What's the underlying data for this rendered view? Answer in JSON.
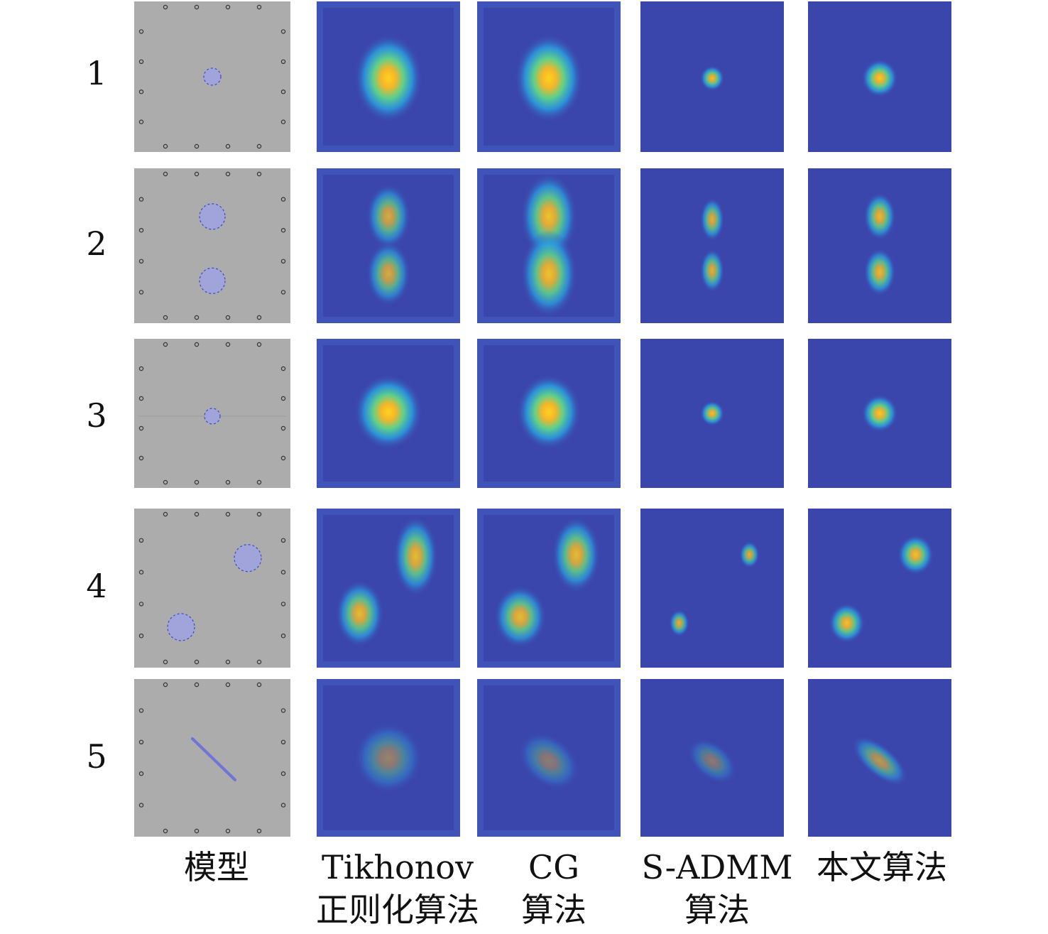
{
  "rows": [
    {
      "label": "1"
    },
    {
      "label": "2"
    },
    {
      "label": "3"
    },
    {
      "label": "4"
    },
    {
      "label": "5"
    }
  ],
  "columns": [
    {
      "line1": "模型",
      "line2": ""
    },
    {
      "line1": "Tikhonov",
      "line2": "正则化算法"
    },
    {
      "line1": "CG",
      "line2": "算法"
    },
    {
      "line1": "S-ADMM",
      "line2": "算法"
    },
    {
      "line1": "本文算法",
      "line2": ""
    }
  ],
  "colors": {
    "model_background": "#acacac",
    "inclusion_fill": "#a0a4da",
    "inclusion_edge": "#3a48c8",
    "recon_background": "#3b46ad",
    "high": "#ffd21e"
  }
}
